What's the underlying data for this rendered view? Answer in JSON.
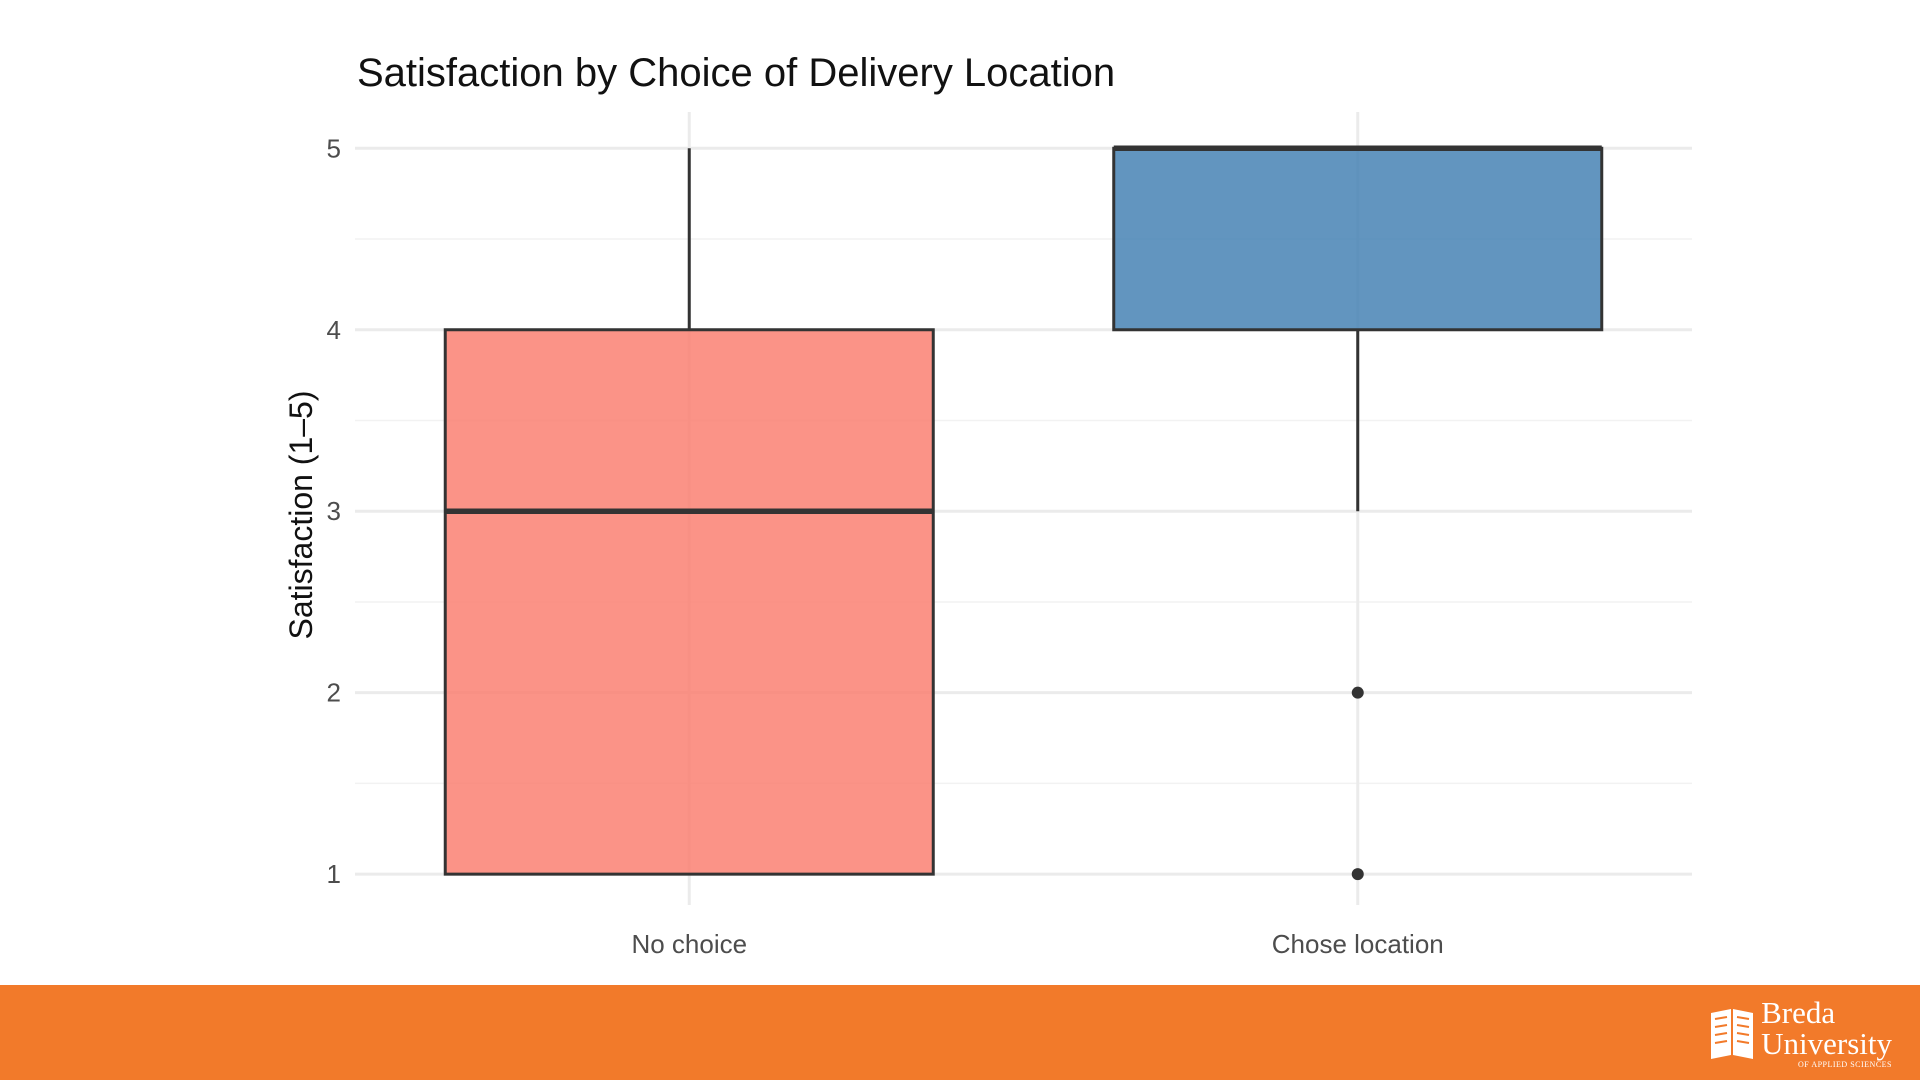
{
  "chart_data": {
    "type": "box",
    "title": "Satisfaction by Choice of Delivery Location",
    "xlabel": "",
    "ylabel": "Satisfaction (1–5)",
    "ylim": [
      0.83,
      5.2
    ],
    "yticks": [
      1,
      2,
      3,
      4,
      5
    ],
    "grid": true,
    "legend": "none",
    "categories": [
      "No choice",
      "Chose location"
    ],
    "boxes": [
      {
        "category": "No choice",
        "min": 1,
        "q1": 1,
        "median": 3,
        "q3": 4,
        "max": 5,
        "outliers": [],
        "color": "#fa8072"
      },
      {
        "category": "Chose location",
        "min": 3,
        "q1": 4,
        "median": 5,
        "q3": 5,
        "max": 5,
        "outliers": [
          2,
          1
        ],
        "color": "#4682b4"
      }
    ]
  },
  "footer": {
    "color": "#f27a2a",
    "logo": {
      "line1": "Breda",
      "line2": "University",
      "line3": "OF APPLIED SCIENCES"
    }
  }
}
